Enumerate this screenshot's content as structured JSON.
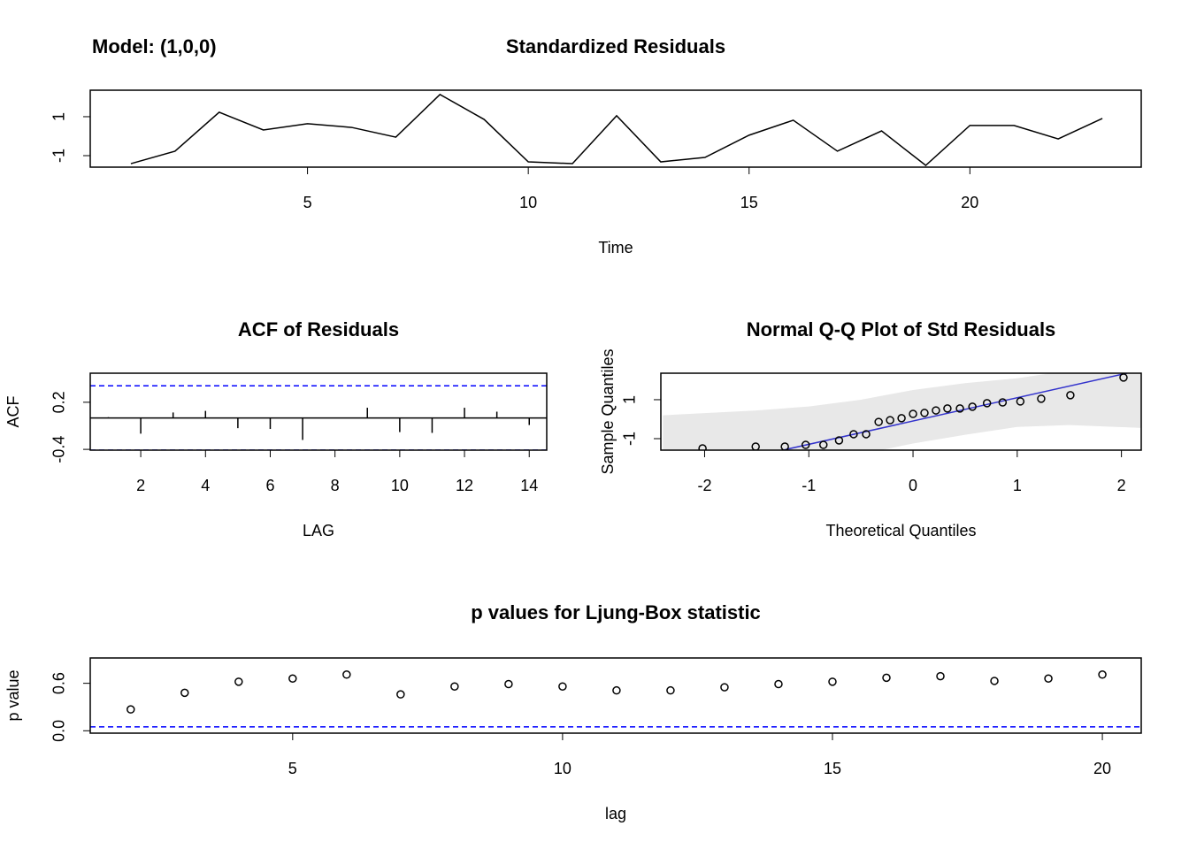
{
  "chart_data": [
    {
      "type": "line",
      "annotation": "Model: (1,0,0)",
      "title": "Standardized Residuals",
      "xlabel": "Time",
      "x": [
        1,
        2,
        3,
        4,
        5,
        6,
        7,
        8,
        9,
        10,
        11,
        12,
        13,
        14,
        15,
        16,
        17,
        18,
        19,
        20,
        21,
        22,
        23
      ],
      "values": [
        -1.41,
        -0.77,
        1.23,
        0.32,
        0.64,
        0.45,
        -0.05,
        2.14,
        0.86,
        -1.32,
        -1.41,
        1.05,
        -1.32,
        -1.09,
        0.05,
        0.82,
        -0.77,
        0.27,
        -1.5,
        0.55,
        0.55,
        -0.14,
        0.91
      ],
      "color": "#000000",
      "xlim": [
        0.08,
        23.88
      ],
      "ylim": [
        -1.59,
        2.36
      ],
      "xticks": [
        5,
        10,
        15,
        20
      ],
      "yticks": [
        -1,
        1
      ]
    },
    {
      "type": "stem",
      "title": "ACF of Residuals",
      "xlabel": "LAG",
      "ylabel": "ACF",
      "x": [
        1,
        2,
        3,
        4,
        5,
        6,
        7,
        8,
        9,
        10,
        11,
        12,
        13,
        14
      ],
      "values": [
        0.01,
        -0.2,
        0.07,
        0.09,
        -0.13,
        -0.14,
        -0.28,
        0.0,
        0.13,
        -0.18,
        -0.19,
        0.13,
        0.08,
        -0.09
      ],
      "color": "#000000",
      "hlines": [
        0.41,
        -0.41
      ],
      "hline_color": "#0000ff",
      "xlim": [
        0.44,
        14.54
      ],
      "ylim": [
        -0.41,
        0.57
      ],
      "xticks": [
        2,
        4,
        6,
        8,
        10,
        12,
        14
      ],
      "yticks": [
        -0.4,
        0.2
      ]
    },
    {
      "type": "scatter",
      "title": "Normal Q-Q Plot of Std Residuals",
      "xlabel": "Theoretical Quantiles",
      "ylabel": "Sample Quantiles",
      "x": [
        -2.02,
        -1.51,
        -1.23,
        -1.03,
        -0.86,
        -0.71,
        -0.57,
        -0.45,
        -0.33,
        -0.22,
        -0.11,
        0,
        0.11,
        0.22,
        0.33,
        0.45,
        0.57,
        0.71,
        0.86,
        1.03,
        1.23,
        1.51,
        2.02
      ],
      "values": [
        -1.5,
        -1.41,
        -1.41,
        -1.32,
        -1.32,
        -1.09,
        -0.77,
        -0.77,
        -0.14,
        -0.05,
        0.05,
        0.27,
        0.32,
        0.45,
        0.55,
        0.55,
        0.64,
        0.82,
        0.86,
        0.91,
        1.05,
        1.23,
        2.14
      ],
      "color": "#000000",
      "qq_line": {
        "intercept": -0.095,
        "slope": 1.196,
        "color": "#3333cc"
      },
      "band": {
        "x": [
          -2.4,
          -1.5,
          -1,
          -0.5,
          0,
          0.5,
          1,
          1.5,
          2.2
        ],
        "upper": [
          0.2,
          0.45,
          0.65,
          1.0,
          1.5,
          1.85,
          2.1,
          2.5,
          3.2
        ],
        "lower": [
          -3.4,
          -2.7,
          -2.3,
          -1.8,
          -1.25,
          -0.8,
          -0.4,
          -0.3,
          -0.45
        ],
        "color": "#e8e8e8"
      },
      "xlim": [
        -2.42,
        2.19
      ],
      "ylim": [
        -1.59,
        2.36
      ],
      "xticks": [
        -2,
        -1,
        0,
        1,
        2
      ],
      "yticks": [
        -1,
        1
      ]
    },
    {
      "type": "scatter",
      "title": "p values for Ljung-Box statistic",
      "xlabel": "lag",
      "ylabel": "p value",
      "x": [
        2,
        3,
        4,
        5,
        6,
        7,
        8,
        9,
        10,
        11,
        12,
        13,
        14,
        15,
        16,
        17,
        18,
        19,
        20
      ],
      "values": [
        0.27,
        0.48,
        0.62,
        0.66,
        0.71,
        0.46,
        0.56,
        0.59,
        0.56,
        0.51,
        0.51,
        0.55,
        0.59,
        0.62,
        0.67,
        0.69,
        0.63,
        0.66,
        0.71
      ],
      "color": "#000000",
      "hlines": [
        0.05
      ],
      "hline_color": "#0000ff",
      "xlim": [
        1.25,
        20.72
      ],
      "ylim": [
        -0.03,
        0.92
      ],
      "xticks": [
        5,
        10,
        15,
        20
      ],
      "yticks": [
        {
          "value": 0,
          "label": "0.0"
        },
        0.6
      ]
    }
  ]
}
